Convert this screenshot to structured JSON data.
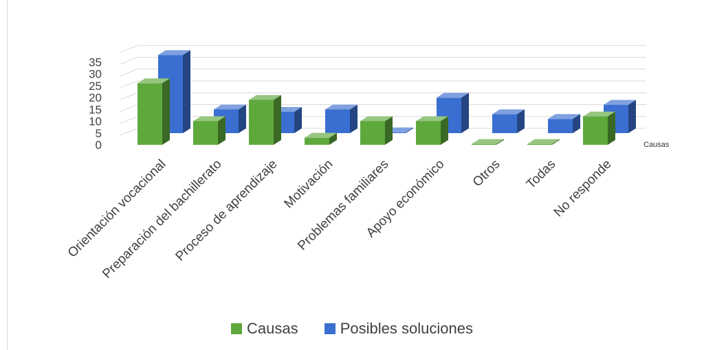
{
  "chart_data": {
    "type": "bar",
    "title": "",
    "categories": [
      "Orientación vocacional",
      "Preparación del bachillerato",
      "Proceso de aprendizaje",
      "Motivación",
      "Problemas familiares",
      "Apoyo económico",
      "Otros",
      "Todas",
      "No responde"
    ],
    "series": [
      {
        "name": "Causas",
        "color": "#5ea83c",
        "values": [
          26,
          10,
          19,
          3,
          10,
          10,
          0,
          0,
          12
        ]
      },
      {
        "name": "Posibles soluciones",
        "color": "#3a6fd1",
        "values": [
          33,
          10,
          9,
          10,
          0,
          15,
          8,
          6,
          12
        ]
      }
    ],
    "depth_axis_label": "Causas",
    "yticks": [
      0,
      5,
      10,
      15,
      20,
      25,
      30,
      35
    ],
    "ylim": [
      0,
      35
    ],
    "grid": true,
    "legend_position": "bottom"
  }
}
